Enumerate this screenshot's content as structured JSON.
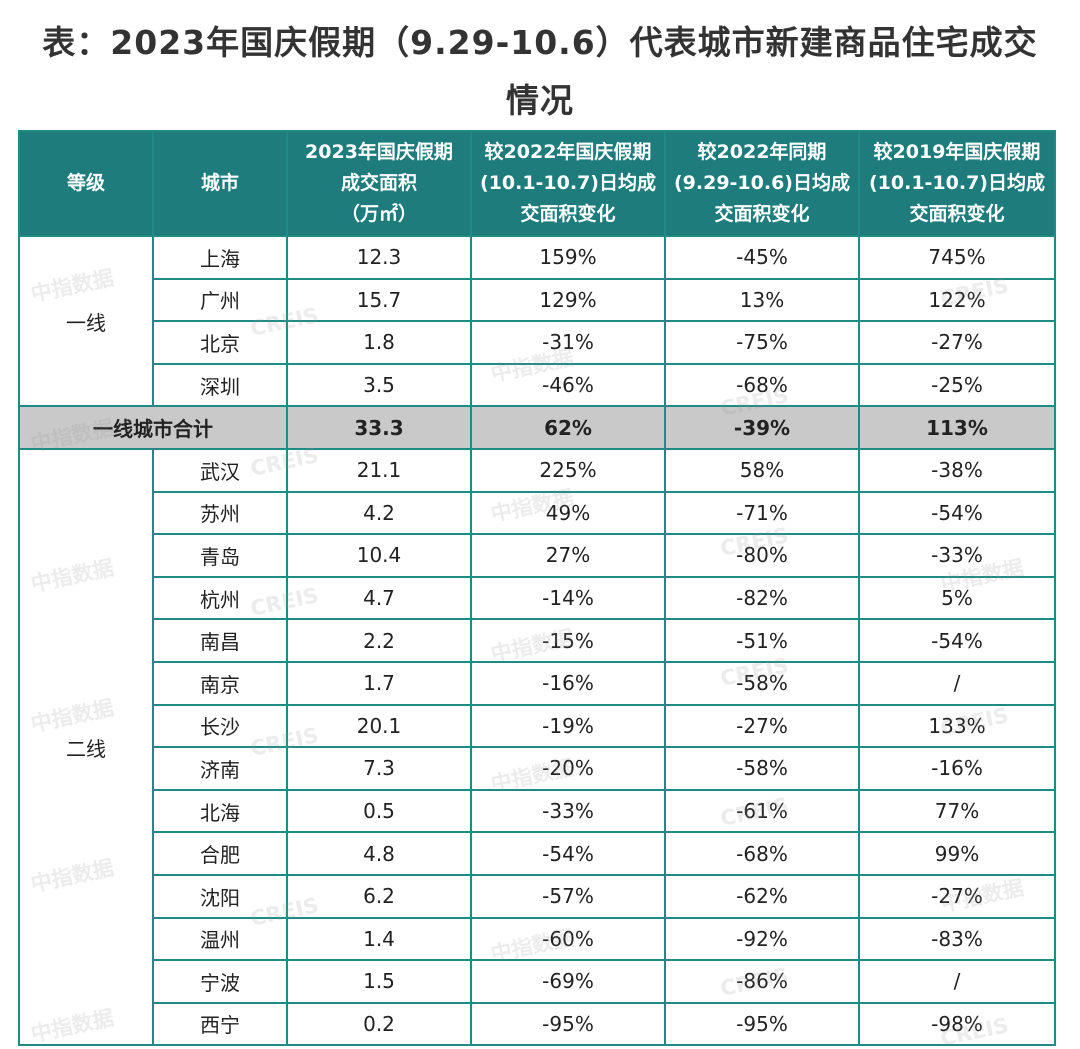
{
  "title_line1": "表：2023年国庆假期（9.29-10.6）代表城市新建商品住宅成交",
  "title_line2": "情况",
  "headers": {
    "tier": "等级",
    "city": "城市",
    "area": [
      "2023年国庆假期",
      "成交面积",
      "（万㎡）"
    ],
    "vs2022_holiday": [
      "较2022年国庆假期",
      "(10.1-10.7)日均成",
      "交面积变化"
    ],
    "vs2022_same": [
      "较2022年同期",
      "(9.29-10.6)日均成",
      "交面积变化"
    ],
    "vs2019_holiday": [
      "较2019年国庆假期",
      "(10.1-10.7)日均成",
      "交面积变化"
    ]
  },
  "tier1": {
    "label": "一线",
    "rows": [
      {
        "city": "上海",
        "area": "12.3",
        "c1": "159%",
        "c2": "-45%",
        "c3": "745%"
      },
      {
        "city": "广州",
        "area": "15.7",
        "c1": "129%",
        "c2": "13%",
        "c3": "122%"
      },
      {
        "city": "北京",
        "area": "1.8",
        "c1": "-31%",
        "c2": "-75%",
        "c3": "-27%"
      },
      {
        "city": "深圳",
        "area": "3.5",
        "c1": "-46%",
        "c2": "-68%",
        "c3": "-25%"
      }
    ]
  },
  "subtotal": {
    "label": "一线城市合计",
    "area": "33.3",
    "c1": "62%",
    "c2": "-39%",
    "c3": "113%"
  },
  "tier2": {
    "label": "二线",
    "rows": [
      {
        "city": "武汉",
        "area": "21.1",
        "c1": "225%",
        "c2": "58%",
        "c3": "-38%"
      },
      {
        "city": "苏州",
        "area": "4.2",
        "c1": "49%",
        "c2": "-71%",
        "c3": "-54%"
      },
      {
        "city": "青岛",
        "area": "10.4",
        "c1": "27%",
        "c2": "-80%",
        "c3": "-33%"
      },
      {
        "city": "杭州",
        "area": "4.7",
        "c1": "-14%",
        "c2": "-82%",
        "c3": "5%"
      },
      {
        "city": "南昌",
        "area": "2.2",
        "c1": "-15%",
        "c2": "-51%",
        "c3": "-54%"
      },
      {
        "city": "南京",
        "area": "1.7",
        "c1": "-16%",
        "c2": "-58%",
        "c3": "/"
      },
      {
        "city": "长沙",
        "area": "20.1",
        "c1": "-19%",
        "c2": "-27%",
        "c3": "133%"
      },
      {
        "city": "济南",
        "area": "7.3",
        "c1": "-20%",
        "c2": "-58%",
        "c3": "-16%"
      },
      {
        "city": "北海",
        "area": "0.5",
        "c1": "-33%",
        "c2": "-61%",
        "c3": "77%"
      },
      {
        "city": "合肥",
        "area": "4.8",
        "c1": "-54%",
        "c2": "-68%",
        "c3": "99%"
      },
      {
        "city": "沈阳",
        "area": "6.2",
        "c1": "-57%",
        "c2": "-62%",
        "c3": "-27%"
      },
      {
        "city": "温州",
        "area": "1.4",
        "c1": "-60%",
        "c2": "-92%",
        "c3": "-83%"
      },
      {
        "city": "宁波",
        "area": "1.5",
        "c1": "-69%",
        "c2": "-86%",
        "c3": "/"
      },
      {
        "city": "西宁",
        "area": "0.2",
        "c1": "-95%",
        "c2": "-95%",
        "c3": "-98%"
      }
    ]
  },
  "watermark": {
    "a": "中指数据",
    "b": "CREIS"
  },
  "colors": {
    "header_bg": "#1e7c7c",
    "border": "#1f8a86",
    "subtotal_bg": "#c9c9c9"
  }
}
